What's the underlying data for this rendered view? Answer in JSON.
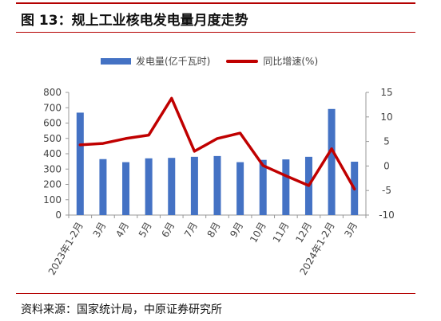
{
  "header": {
    "title": "图 13：规上工业核电发电量月度走势"
  },
  "footer": {
    "source": "资料来源：国家统计局，中原证券研究所"
  },
  "colors": {
    "accent_rule": "#b40000",
    "bar": "#4472c4",
    "line": "#c00000"
  },
  "chart_data": {
    "type": "bar",
    "categories": [
      "2023年1-2月",
      "3月",
      "4月",
      "5月",
      "6月",
      "7月",
      "8月",
      "9月",
      "10月",
      "11月",
      "12月",
      "2024年1-2月",
      "3月"
    ],
    "series": [
      {
        "name": "发电量(亿千瓦时)",
        "type": "bar",
        "axis": "left",
        "values": [
          668,
          365,
          345,
          370,
          373,
          380,
          385,
          345,
          360,
          363,
          380,
          692,
          348
        ]
      },
      {
        "name": "同比增速(%)",
        "type": "line",
        "axis": "right",
        "values": [
          4.3,
          4.6,
          5.6,
          6.3,
          13.8,
          3.0,
          5.6,
          6.7,
          0.1,
          -2.0,
          -4.0,
          3.5,
          -4.7
        ]
      }
    ],
    "y_left": {
      "min": 0,
      "max": 800,
      "ticks": [
        0,
        100,
        200,
        300,
        400,
        500,
        600,
        700,
        800
      ]
    },
    "y_right": {
      "min": -10,
      "max": 15,
      "ticks": [
        -10,
        -5,
        0,
        5,
        10,
        15
      ]
    },
    "legend": "top-center",
    "grid": false
  }
}
